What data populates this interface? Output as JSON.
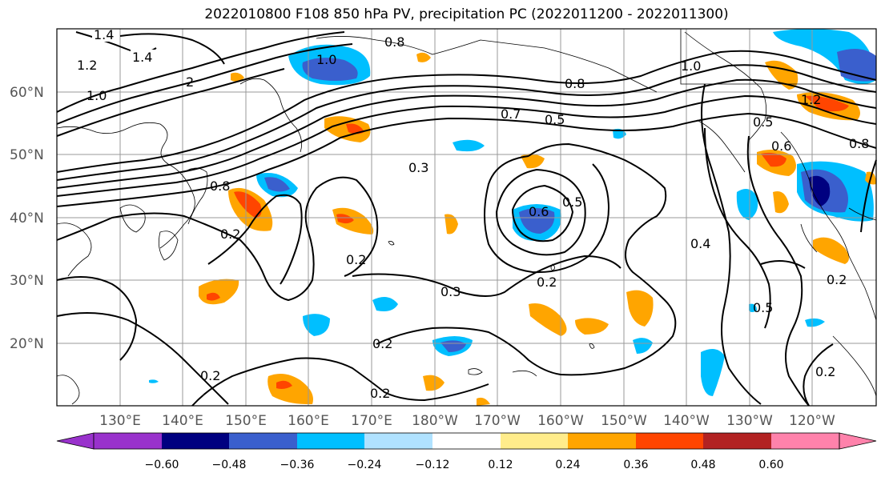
{
  "title": "2022010800 F108 850 hPa PV, precipitation PC (2022011200 - 2022011300)",
  "latitude_labels": [
    "60°N",
    "50°N",
    "40°N",
    "30°N",
    "20°N"
  ],
  "longitude_labels": [
    "130°E",
    "140°E",
    "150°E",
    "160°E",
    "170°E",
    "180°W",
    "170°W",
    "160°W",
    "150°W",
    "140°W",
    "130°W",
    "120°W"
  ],
  "colorbar": {
    "ticks": [
      "−0.60",
      "−0.48",
      "−0.36",
      "−0.24",
      "−0.12",
      "0.12",
      "0.24",
      "0.36",
      "0.48",
      "0.60"
    ],
    "colors": [
      "#9932cc",
      "#000080",
      "#3a5fcd",
      "#00bfff",
      "#b0e2ff",
      "#ffffff",
      "#ffec8b",
      "#ffa500",
      "#ff4500",
      "#b22222",
      "#ff82ab"
    ]
  },
  "contour_labels": [
    "1.4",
    "1.2",
    "1.4",
    "1.0",
    "0.8",
    "1.0",
    "2",
    "0.7",
    "0.5",
    "0.8",
    "1.0",
    "0.5",
    "0.6",
    "0.8",
    "0.3",
    "0.6",
    "0.5",
    "0.4",
    "0.2",
    "0.2",
    "0.3",
    "0.2",
    "0.2",
    "0.2",
    "0.2",
    "0.5",
    "0.2",
    "0.2",
    "1.2",
    "0.8"
  ],
  "colors": {
    "contour": "#000000",
    "grid": "#999999",
    "coast": "#000000"
  }
}
